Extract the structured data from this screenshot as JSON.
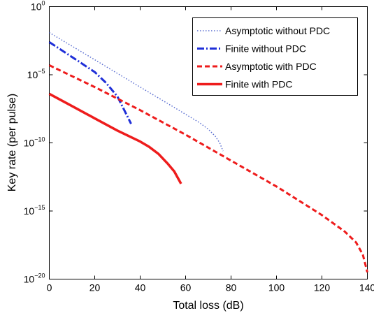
{
  "chart_data": {
    "type": "line",
    "title": "",
    "xlabel": "Total loss (dB)",
    "ylabel": "Key rate (per pulse)",
    "xlim": [
      0,
      140
    ],
    "ylim_log10": [
      -20,
      0
    ],
    "y_scale": "log",
    "x_ticks": [
      0,
      20,
      40,
      60,
      80,
      100,
      120,
      140
    ],
    "y_ticks": [
      {
        "base": "10",
        "exp": "0",
        "log10": 0
      },
      {
        "base": "10",
        "exp": "−5",
        "log10": -5
      },
      {
        "base": "10",
        "exp": "−10",
        "log10": -10
      },
      {
        "base": "10",
        "exp": "−15",
        "log10": -15
      },
      {
        "base": "10",
        "exp": "−20",
        "log10": -20
      }
    ],
    "grid": false,
    "legend_position": "top-right",
    "series": [
      {
        "name": "Asymptotic without PDC",
        "color": "#5b6fd1",
        "style": "dotted",
        "x": [
          0,
          10,
          20,
          30,
          40,
          50,
          60,
          66,
          70,
          73,
          75,
          76.5
        ],
        "log10_y": [
          -1.9,
          -2.9,
          -3.9,
          -4.9,
          -5.9,
          -6.9,
          -7.9,
          -8.5,
          -9.0,
          -9.5,
          -10.0,
          -10.6
        ]
      },
      {
        "name": "Finite without PDC",
        "color": "#1f2fd8",
        "style": "dash-dot",
        "x": [
          0,
          10,
          20,
          25,
          30,
          33,
          36
        ],
        "log10_y": [
          -2.6,
          -3.7,
          -4.8,
          -5.6,
          -6.6,
          -7.6,
          -8.6
        ]
      },
      {
        "name": "Asymptotic with PDC",
        "color": "#ee1c1c",
        "style": "dashed",
        "x": [
          0,
          20,
          40,
          60,
          80,
          100,
          120,
          130,
          135,
          138,
          140
        ],
        "log10_y": [
          -4.3,
          -5.9,
          -7.6,
          -9.4,
          -11.3,
          -13.2,
          -15.3,
          -16.5,
          -17.3,
          -18.2,
          -19.5
        ]
      },
      {
        "name": "Finite with PDC",
        "color": "#ee1c1c",
        "style": "solid",
        "x": [
          0,
          10,
          20,
          30,
          40,
          44,
          48,
          52,
          55,
          58
        ],
        "log10_y": [
          -6.4,
          -7.3,
          -8.2,
          -9.1,
          -9.9,
          -10.3,
          -10.8,
          -11.5,
          -12.1,
          -13.0
        ]
      }
    ]
  }
}
